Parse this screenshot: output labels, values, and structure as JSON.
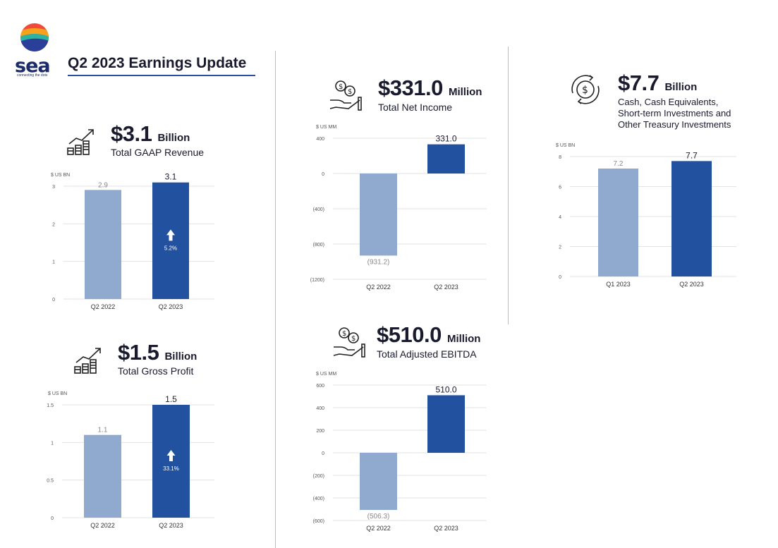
{
  "logo": {
    "word": "sea",
    "tagline": "connecting the dots"
  },
  "page_title": "Q2 2023 Earnings Update",
  "colors": {
    "prior_bar": "#8fa9cf",
    "current_bar": "#2251a0",
    "grid": "#e3e3e3",
    "text_dark": "#1a1a2e",
    "title_rule": "#2b4ea3"
  },
  "metrics": {
    "revenue": {
      "value": "$3.1",
      "unit": "Billion",
      "label": "Total GAAP Revenue",
      "icon": "growth-bars-icon"
    },
    "gross_profit": {
      "value": "$1.5",
      "unit": "Billion",
      "label": "Total Gross Profit",
      "icon": "growth-bars-icon"
    },
    "net_income": {
      "value": "$331.0",
      "unit": "Million",
      "label": "Total Net Income",
      "icon": "hand-coins-icon"
    },
    "ebitda": {
      "value": "$510.0",
      "unit": "Million",
      "label": "Total Adjusted EBITDA",
      "icon": "hand-coins-icon"
    },
    "cash": {
      "value": "$7.7",
      "unit": "Billion",
      "label_lines": [
        "Cash, Cash Equivalents,",
        "Short-term Investments and",
        "Other Treasury Investments"
      ],
      "icon": "dollar-cycle-icon"
    }
  },
  "chart_data": [
    {
      "id": "revenue",
      "type": "bar",
      "ylabel": "$ US BN",
      "categories": [
        "Q2 2022",
        "Q2 2023"
      ],
      "values": [
        2.9,
        3.1
      ],
      "value_labels": [
        "2.9",
        "3.1"
      ],
      "ylim": [
        0,
        3
      ],
      "ticks": [
        0,
        1,
        2,
        3
      ],
      "tick_labels": [
        "0",
        "1",
        "2",
        "3"
      ],
      "growth_label": "5.2%",
      "grid": true
    },
    {
      "id": "gross_profit",
      "type": "bar",
      "ylabel": "$ US BN",
      "categories": [
        "Q2 2022",
        "Q2 2023"
      ],
      "values": [
        1.1,
        1.5
      ],
      "value_labels": [
        "1.1",
        "1.5"
      ],
      "ylim": [
        0,
        1.5
      ],
      "ticks": [
        0,
        0.5,
        1,
        1.5
      ],
      "tick_labels": [
        "0",
        "0.5",
        "1",
        "1.5"
      ],
      "growth_label": "33.1%",
      "grid": true
    },
    {
      "id": "net_income",
      "type": "bar",
      "ylabel": "$ US MM",
      "categories": [
        "Q2 2022",
        "Q2 2023"
      ],
      "values": [
        -931.2,
        331.0
      ],
      "value_labels": [
        "(931.2)",
        "331.0"
      ],
      "ylim": [
        -1200,
        400
      ],
      "ticks": [
        -1200,
        -800,
        -400,
        0,
        400
      ],
      "tick_labels": [
        "(1200)",
        "(800)",
        "(400)",
        "0",
        "400"
      ],
      "grid": true
    },
    {
      "id": "ebitda",
      "type": "bar",
      "ylabel": "$ US MM",
      "categories": [
        "Q2 2022",
        "Q2 2023"
      ],
      "values": [
        -506.3,
        510.0
      ],
      "value_labels": [
        "(506.3)",
        "510.0"
      ],
      "ylim": [
        -600,
        600
      ],
      "ticks": [
        -600,
        -400,
        -200,
        0,
        200,
        400,
        600
      ],
      "tick_labels": [
        "(600)",
        "(400)",
        "(200)",
        "0",
        "200",
        "400",
        "600"
      ],
      "grid": true
    },
    {
      "id": "cash",
      "type": "bar",
      "ylabel": "$ US BN",
      "categories": [
        "Q1 2023",
        "Q2 2023"
      ],
      "values": [
        7.2,
        7.7
      ],
      "value_labels": [
        "7.2",
        "7.7"
      ],
      "ylim": [
        0,
        8
      ],
      "ticks": [
        0,
        2,
        4,
        6,
        8
      ],
      "tick_labels": [
        "0",
        "2",
        "4",
        "6",
        "8"
      ],
      "grid": true
    }
  ]
}
